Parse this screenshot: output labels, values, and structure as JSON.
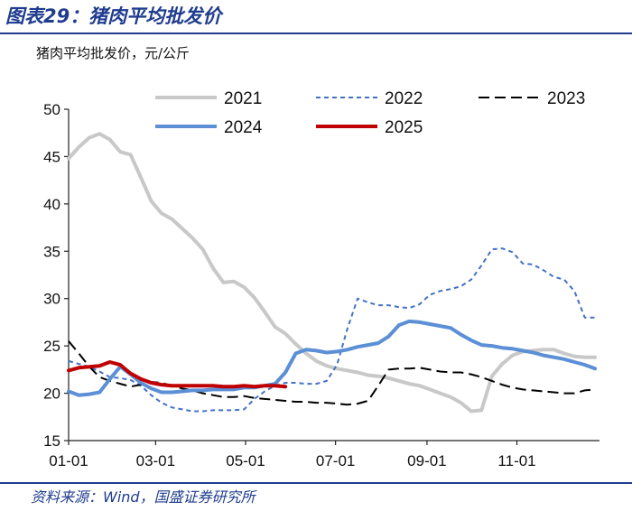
{
  "header": {
    "title": "图表29：猪肉平均批发价",
    "unit": "猪肉平均批发价，元/公斤"
  },
  "footer": {
    "source": "资料来源：Wind，国盛证券研究所"
  },
  "colors": {
    "accent": "#1f3c8f",
    "s2021": "#c8c8c8",
    "s2022": "#4472c4",
    "s2023": "#000000",
    "s2024": "#5b8fd6",
    "s2025": "#c00000"
  },
  "chart_data": {
    "type": "line",
    "title": "猪肉平均批发价",
    "ylabel": "元/公斤",
    "xlabel": "",
    "ylim": [
      15,
      50
    ],
    "yticks": [
      15,
      20,
      25,
      30,
      35,
      40,
      45,
      50
    ],
    "xlim": [
      0,
      360
    ],
    "xticks": [
      {
        "day": 0,
        "label": "01-01"
      },
      {
        "day": 59,
        "label": "03-01"
      },
      {
        "day": 120,
        "label": "05-01"
      },
      {
        "day": 181,
        "label": "07-01"
      },
      {
        "day": 243,
        "label": "09-01"
      },
      {
        "day": 304,
        "label": "11-01"
      }
    ],
    "legend_position": "top",
    "series": [
      {
        "name": "2021",
        "colorKey": "s2021",
        "dash": "solid",
        "width": 4,
        "x": [
          0,
          7,
          14,
          21,
          28,
          35,
          42,
          49,
          56,
          63,
          70,
          77,
          84,
          91,
          98,
          105,
          112,
          119,
          126,
          133,
          140,
          147,
          154,
          161,
          168,
          175,
          182,
          189,
          196,
          203,
          210,
          217,
          224,
          231,
          238,
          245,
          252,
          259,
          266,
          273,
          280,
          287,
          294,
          301,
          308,
          315,
          322,
          329,
          336,
          343,
          350,
          357
        ],
        "y": [
          44.8,
          46.0,
          47.0,
          47.4,
          46.8,
          45.5,
          45.2,
          42.8,
          40.3,
          39.0,
          38.4,
          37.4,
          36.4,
          35.2,
          33.2,
          31.7,
          31.8,
          31.2,
          30.1,
          28.6,
          27.0,
          26.3,
          25.2,
          24.2,
          23.4,
          22.9,
          22.6,
          22.4,
          22.2,
          21.9,
          21.8,
          21.6,
          21.3,
          21.0,
          20.8,
          20.4,
          20.0,
          19.6,
          19.0,
          18.1,
          18.2,
          21.8,
          23.1,
          24.0,
          24.4,
          24.5,
          24.6,
          24.6,
          24.2,
          23.9,
          23.8,
          23.8
        ]
      },
      {
        "name": "2022",
        "colorKey": "s2022",
        "dash": "5,4",
        "width": 2,
        "x": [
          0,
          7,
          14,
          21,
          28,
          35,
          42,
          49,
          56,
          63,
          70,
          77,
          84,
          91,
          98,
          105,
          112,
          119,
          126,
          133,
          140,
          147,
          154,
          161,
          168,
          175,
          182,
          189,
          196,
          203,
          210,
          217,
          224,
          231,
          238,
          245,
          252,
          259,
          266,
          273,
          280,
          287,
          294,
          301,
          308,
          315,
          322,
          329,
          336,
          343,
          350,
          357
        ],
        "y": [
          23.4,
          23.1,
          22.8,
          22.3,
          21.7,
          21.6,
          21.4,
          20.8,
          19.8,
          19.0,
          18.5,
          18.3,
          18.1,
          18.1,
          18.2,
          18.2,
          18.2,
          18.3,
          19.4,
          20.2,
          20.8,
          21.1,
          21.1,
          21.0,
          21.0,
          21.3,
          23.0,
          26.8,
          30.0,
          29.6,
          29.3,
          29.3,
          29.1,
          29.0,
          29.4,
          30.4,
          30.8,
          31.0,
          31.3,
          32.0,
          33.5,
          35.2,
          35.3,
          34.9,
          33.7,
          33.6,
          33.0,
          32.3,
          32.0,
          30.8,
          28.0,
          28.0
        ]
      },
      {
        "name": "2023",
        "colorKey": "s2023",
        "dash": "12,6",
        "width": 2,
        "x": [
          0,
          7,
          14,
          21,
          28,
          35,
          42,
          49,
          56,
          63,
          70,
          77,
          84,
          91,
          98,
          105,
          112,
          119,
          126,
          133,
          140,
          147,
          154,
          161,
          168,
          175,
          182,
          189,
          196,
          203,
          210,
          217,
          224,
          231,
          238,
          245,
          252,
          259,
          266,
          273,
          280,
          287,
          294,
          301,
          308,
          315,
          322,
          329,
          336,
          343,
          350,
          357
        ],
        "y": [
          25.5,
          24.2,
          22.8,
          21.7,
          21.3,
          21.0,
          20.7,
          20.9,
          21.2,
          21.1,
          20.8,
          20.5,
          20.3,
          20.0,
          19.8,
          19.6,
          19.6,
          19.7,
          19.5,
          19.4,
          19.3,
          19.2,
          19.1,
          19.1,
          19.0,
          19.0,
          18.9,
          18.8,
          18.9,
          19.2,
          20.8,
          22.5,
          22.6,
          22.6,
          22.7,
          22.5,
          22.3,
          22.2,
          22.2,
          22.0,
          21.7,
          21.3,
          20.9,
          20.6,
          20.4,
          20.3,
          20.2,
          20.1,
          20.0,
          20.0,
          20.3,
          20.4
        ]
      },
      {
        "name": "2024",
        "colorKey": "s2024",
        "dash": "solid",
        "width": 4,
        "x": [
          0,
          7,
          14,
          21,
          28,
          35,
          42,
          49,
          56,
          63,
          70,
          77,
          84,
          91,
          98,
          105,
          112,
          119,
          126,
          133,
          140,
          147,
          154,
          161,
          168,
          175,
          182,
          189,
          196,
          203,
          210,
          217,
          224,
          231,
          238,
          245,
          252,
          259,
          266,
          273,
          280,
          287,
          294,
          301,
          308,
          315,
          322,
          329,
          336,
          343,
          350,
          357
        ],
        "y": [
          20.2,
          19.8,
          19.9,
          20.1,
          21.5,
          22.8,
          22.0,
          21.1,
          20.5,
          20.1,
          20.1,
          20.2,
          20.3,
          20.3,
          20.4,
          20.4,
          20.4,
          20.6,
          20.6,
          20.8,
          21.0,
          22.2,
          24.2,
          24.6,
          24.5,
          24.3,
          24.4,
          24.6,
          24.9,
          25.1,
          25.3,
          26.0,
          27.2,
          27.6,
          27.5,
          27.3,
          27.1,
          26.9,
          26.2,
          25.6,
          25.1,
          25.0,
          24.8,
          24.7,
          24.5,
          24.3,
          24.0,
          23.8,
          23.6,
          23.3,
          23.0,
          22.6
        ]
      },
      {
        "name": "2025",
        "colorKey": "s2025",
        "dash": "solid",
        "width": 4,
        "x": [
          0,
          7,
          14,
          21,
          28,
          35,
          42,
          49,
          56,
          63,
          70,
          77,
          84,
          91,
          98,
          105,
          112,
          119,
          126,
          133,
          140,
          147
        ],
        "y": [
          22.4,
          22.7,
          22.8,
          22.9,
          23.3,
          23.0,
          22.1,
          21.5,
          21.1,
          20.9,
          20.8,
          20.8,
          20.8,
          20.8,
          20.8,
          20.7,
          20.7,
          20.8,
          20.7,
          20.8,
          20.8,
          20.7
        ]
      }
    ]
  }
}
